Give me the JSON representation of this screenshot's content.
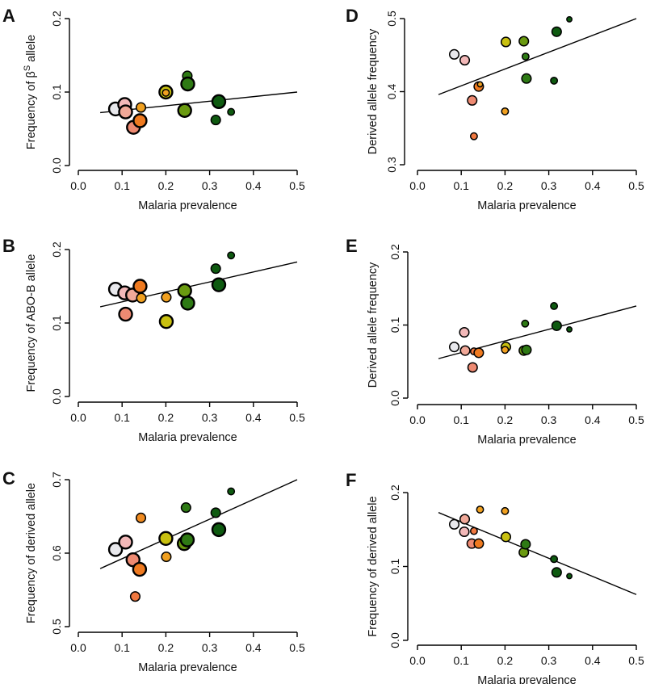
{
  "chart_data": [
    {
      "type": "scatter",
      "panel": "A",
      "ylabel": "Frequency of β",
      "ylabel_sup": "S",
      "ylabel_post": " allele",
      "xlabel": "Malaria prevalence",
      "xlim": [
        0,
        0.5
      ],
      "ylim": [
        0,
        0.2
      ],
      "xticks": [
        "0.0",
        "0.1",
        "0.2",
        "0.3",
        "0.4",
        "0.5"
      ],
      "yticks": [
        "0.0",
        "0.1",
        "0.2"
      ],
      "fit_line": [
        [
          0.05,
          0.072
        ],
        [
          0.5,
          0.1
        ]
      ],
      "points": [
        {
          "x": 0.085,
          "y": 0.077,
          "color": "#e8e8ec",
          "size": "large"
        },
        {
          "x": 0.106,
          "y": 0.083,
          "color": "#f2b8b8",
          "size": "large"
        },
        {
          "x": 0.108,
          "y": 0.073,
          "color": "#f0a898",
          "size": "large"
        },
        {
          "x": 0.126,
          "y": 0.052,
          "color": "#ee8a72",
          "size": "large"
        },
        {
          "x": 0.141,
          "y": 0.061,
          "color": "#ef7a20",
          "size": "large"
        },
        {
          "x": 0.143,
          "y": 0.079,
          "color": "#f0a020",
          "size": "medium"
        },
        {
          "x": 0.2,
          "y": 0.1,
          "color": "#c8c010",
          "size": "large"
        },
        {
          "x": 0.2,
          "y": 0.099,
          "color": "#f0a020",
          "size": "small"
        },
        {
          "x": 0.243,
          "y": 0.075,
          "color": "#6a9a10",
          "size": "large"
        },
        {
          "x": 0.249,
          "y": 0.122,
          "color": "#2e7a14",
          "size": "medium"
        },
        {
          "x": 0.25,
          "y": 0.111,
          "color": "#2e7a14",
          "size": "large"
        },
        {
          "x": 0.321,
          "y": 0.087,
          "color": "#0e5a10",
          "size": "large"
        },
        {
          "x": 0.314,
          "y": 0.062,
          "color": "#0e5a10",
          "size": "medium"
        },
        {
          "x": 0.349,
          "y": 0.073,
          "color": "#0e5a10",
          "size": "small"
        }
      ]
    },
    {
      "type": "scatter",
      "panel": "B",
      "ylabel": "Frequency of ABO-B allele",
      "xlabel": "Malaria prevalence",
      "xlim": [
        0,
        0.5
      ],
      "ylim": [
        0,
        0.2
      ],
      "xticks": [
        "0.0",
        "0.1",
        "0.2",
        "0.3",
        "0.4",
        "0.5"
      ],
      "yticks": [
        "0.0",
        "0.1",
        "0.2"
      ],
      "fit_line": [
        [
          0.05,
          0.122
        ],
        [
          0.5,
          0.183
        ]
      ],
      "points": [
        {
          "x": 0.085,
          "y": 0.146,
          "color": "#e8e8ec",
          "size": "large"
        },
        {
          "x": 0.106,
          "y": 0.141,
          "color": "#f2b8b8",
          "size": "large"
        },
        {
          "x": 0.108,
          "y": 0.112,
          "color": "#ee8a72",
          "size": "large"
        },
        {
          "x": 0.124,
          "y": 0.138,
          "color": "#f0a898",
          "size": "large"
        },
        {
          "x": 0.141,
          "y": 0.15,
          "color": "#ef7a20",
          "size": "large"
        },
        {
          "x": 0.144,
          "y": 0.134,
          "color": "#f0a020",
          "size": "medium"
        },
        {
          "x": 0.201,
          "y": 0.135,
          "color": "#f0a020",
          "size": "medium"
        },
        {
          "x": 0.201,
          "y": 0.102,
          "color": "#c8c010",
          "size": "large"
        },
        {
          "x": 0.243,
          "y": 0.144,
          "color": "#6a9a10",
          "size": "large"
        },
        {
          "x": 0.25,
          "y": 0.127,
          "color": "#2e7a14",
          "size": "large"
        },
        {
          "x": 0.314,
          "y": 0.174,
          "color": "#0e5a10",
          "size": "medium"
        },
        {
          "x": 0.321,
          "y": 0.152,
          "color": "#0e5a10",
          "size": "large"
        },
        {
          "x": 0.349,
          "y": 0.192,
          "color": "#0e5a10",
          "size": "small"
        }
      ]
    },
    {
      "type": "scatter",
      "panel": "C",
      "ylabel": "Frequency of derived allele",
      "xlabel": "Malaria prevalence",
      "xlim": [
        0,
        0.5
      ],
      "ylim": [
        0.5,
        0.7
      ],
      "xticks": [
        "0.0",
        "0.1",
        "0.2",
        "0.3",
        "0.4",
        "0.5"
      ],
      "yticks": [
        "0.5",
        "0.6",
        "0.7"
      ],
      "fit_line": [
        [
          0.05,
          0.579
        ],
        [
          0.5,
          0.7
        ]
      ],
      "points": [
        {
          "x": 0.085,
          "y": 0.605,
          "color": "#e8e8ec",
          "size": "large"
        },
        {
          "x": 0.108,
          "y": 0.615,
          "color": "#f2b8b8",
          "size": "large"
        },
        {
          "x": 0.125,
          "y": 0.591,
          "color": "#ee8a72",
          "size": "large"
        },
        {
          "x": 0.14,
          "y": 0.578,
          "color": "#ef7a20",
          "size": "large"
        },
        {
          "x": 0.13,
          "y": 0.541,
          "color": "#f07840",
          "size": "medium"
        },
        {
          "x": 0.143,
          "y": 0.648,
          "color": "#ef8a20",
          "size": "medium"
        },
        {
          "x": 0.2,
          "y": 0.62,
          "color": "#c8c010",
          "size": "large"
        },
        {
          "x": 0.201,
          "y": 0.595,
          "color": "#f0a020",
          "size": "medium"
        },
        {
          "x": 0.242,
          "y": 0.613,
          "color": "#6a9a10",
          "size": "large"
        },
        {
          "x": 0.249,
          "y": 0.618,
          "color": "#2e7a14",
          "size": "large"
        },
        {
          "x": 0.246,
          "y": 0.662,
          "color": "#2e7a14",
          "size": "medium"
        },
        {
          "x": 0.314,
          "y": 0.655,
          "color": "#0e5a10",
          "size": "medium"
        },
        {
          "x": 0.321,
          "y": 0.632,
          "color": "#0e5a10",
          "size": "large"
        },
        {
          "x": 0.349,
          "y": 0.684,
          "color": "#0e5a10",
          "size": "small"
        }
      ]
    },
    {
      "type": "scatter",
      "panel": "D",
      "ylabel": "Derived allele frequency",
      "xlabel": "Malaria prevalence",
      "xlim": [
        0,
        0.5
      ],
      "ylim": [
        0.3,
        0.5
      ],
      "xticks": [
        "0.0",
        "0.1",
        "0.2",
        "0.3",
        "0.4",
        "0.5"
      ],
      "yticks": [
        "0.3",
        "0.4",
        "0.5"
      ],
      "fit_line": [
        [
          0.048,
          0.396
        ],
        [
          0.5,
          0.5
        ]
      ],
      "points": [
        {
          "x": 0.084,
          "y": 0.451,
          "color": "#e8e8ec",
          "size": "medium"
        },
        {
          "x": 0.108,
          "y": 0.443,
          "color": "#f2b8b8",
          "size": "medium"
        },
        {
          "x": 0.125,
          "y": 0.388,
          "color": "#ee8a72",
          "size": "medium"
        },
        {
          "x": 0.14,
          "y": 0.407,
          "color": "#ef7a20",
          "size": "medium"
        },
        {
          "x": 0.143,
          "y": 0.41,
          "color": "#f0a020",
          "size": "tiny"
        },
        {
          "x": 0.129,
          "y": 0.339,
          "color": "#f07840",
          "size": "small"
        },
        {
          "x": 0.2,
          "y": 0.373,
          "color": "#f0a020",
          "size": "small"
        },
        {
          "x": 0.202,
          "y": 0.468,
          "color": "#c8c010",
          "size": "medium"
        },
        {
          "x": 0.243,
          "y": 0.469,
          "color": "#6a9a10",
          "size": "medium"
        },
        {
          "x": 0.247,
          "y": 0.448,
          "color": "#2e7a14",
          "size": "small"
        },
        {
          "x": 0.249,
          "y": 0.418,
          "color": "#2e7a14",
          "size": "medium"
        },
        {
          "x": 0.318,
          "y": 0.482,
          "color": "#0e5a10",
          "size": "medium"
        },
        {
          "x": 0.312,
          "y": 0.415,
          "color": "#0e5a10",
          "size": "small"
        },
        {
          "x": 0.347,
          "y": 0.499,
          "color": "#0e5a10",
          "size": "tiny"
        }
      ]
    },
    {
      "type": "scatter",
      "panel": "E",
      "ylabel": "Derived allele frequency",
      "xlabel": "Malaria prevalence",
      "xlim": [
        0,
        0.5
      ],
      "ylim": [
        0,
        0.2
      ],
      "xticks": [
        "0.0",
        "0.1",
        "0.2",
        "0.3",
        "0.4",
        "0.5"
      ],
      "yticks": [
        "0.0",
        "0.1",
        "0.2"
      ],
      "fit_line": [
        [
          0.048,
          0.054
        ],
        [
          0.5,
          0.126
        ]
      ],
      "points": [
        {
          "x": 0.084,
          "y": 0.07,
          "color": "#e8e8ec",
          "size": "medium"
        },
        {
          "x": 0.107,
          "y": 0.09,
          "color": "#f2b8b8",
          "size": "medium"
        },
        {
          "x": 0.109,
          "y": 0.065,
          "color": "#f0a898",
          "size": "medium"
        },
        {
          "x": 0.126,
          "y": 0.042,
          "color": "#ee8a72",
          "size": "medium"
        },
        {
          "x": 0.129,
          "y": 0.064,
          "color": "#f07840",
          "size": "small"
        },
        {
          "x": 0.14,
          "y": 0.062,
          "color": "#ef7a20",
          "size": "medium"
        },
        {
          "x": 0.202,
          "y": 0.07,
          "color": "#c8c010",
          "size": "medium"
        },
        {
          "x": 0.2,
          "y": 0.066,
          "color": "#f0a020",
          "size": "small"
        },
        {
          "x": 0.243,
          "y": 0.065,
          "color": "#6a9a10",
          "size": "medium"
        },
        {
          "x": 0.249,
          "y": 0.066,
          "color": "#2e7a14",
          "size": "medium"
        },
        {
          "x": 0.246,
          "y": 0.102,
          "color": "#2e7a14",
          "size": "small"
        },
        {
          "x": 0.312,
          "y": 0.126,
          "color": "#0e5a10",
          "size": "small"
        },
        {
          "x": 0.318,
          "y": 0.099,
          "color": "#0e5a10",
          "size": "medium"
        },
        {
          "x": 0.347,
          "y": 0.094,
          "color": "#0e5a10",
          "size": "tiny"
        }
      ]
    },
    {
      "type": "scatter",
      "panel": "F",
      "ylabel": "Frequency of derived allele",
      "xlabel": "Malaria prevalence",
      "xlim": [
        0,
        0.5
      ],
      "ylim": [
        0,
        0.2
      ],
      "xticks": [
        "0.0",
        "0.1",
        "0.2",
        "0.3",
        "0.4",
        "0.5"
      ],
      "yticks": [
        "0.0",
        "0.1",
        "0.2"
      ],
      "fit_line": [
        [
          0.048,
          0.173
        ],
        [
          0.5,
          0.062
        ]
      ],
      "points": [
        {
          "x": 0.084,
          "y": 0.157,
          "color": "#e8e8ec",
          "size": "medium"
        },
        {
          "x": 0.108,
          "y": 0.164,
          "color": "#f0a898",
          "size": "medium"
        },
        {
          "x": 0.107,
          "y": 0.147,
          "color": "#f2b8b8",
          "size": "medium"
        },
        {
          "x": 0.129,
          "y": 0.148,
          "color": "#f07840",
          "size": "small"
        },
        {
          "x": 0.124,
          "y": 0.131,
          "color": "#ee8a72",
          "size": "medium"
        },
        {
          "x": 0.14,
          "y": 0.131,
          "color": "#ef7a20",
          "size": "medium"
        },
        {
          "x": 0.143,
          "y": 0.177,
          "color": "#f0a020",
          "size": "small"
        },
        {
          "x": 0.2,
          "y": 0.175,
          "color": "#f0a020",
          "size": "small"
        },
        {
          "x": 0.202,
          "y": 0.14,
          "color": "#c8c010",
          "size": "medium"
        },
        {
          "x": 0.243,
          "y": 0.119,
          "color": "#6a9a10",
          "size": "medium"
        },
        {
          "x": 0.247,
          "y": 0.13,
          "color": "#2e7a14",
          "size": "medium"
        },
        {
          "x": 0.312,
          "y": 0.11,
          "color": "#0e5a10",
          "size": "small"
        },
        {
          "x": 0.318,
          "y": 0.092,
          "color": "#0e5a10",
          "size": "medium"
        },
        {
          "x": 0.347,
          "y": 0.087,
          "color": "#0e5a10",
          "size": "tiny"
        }
      ]
    }
  ]
}
